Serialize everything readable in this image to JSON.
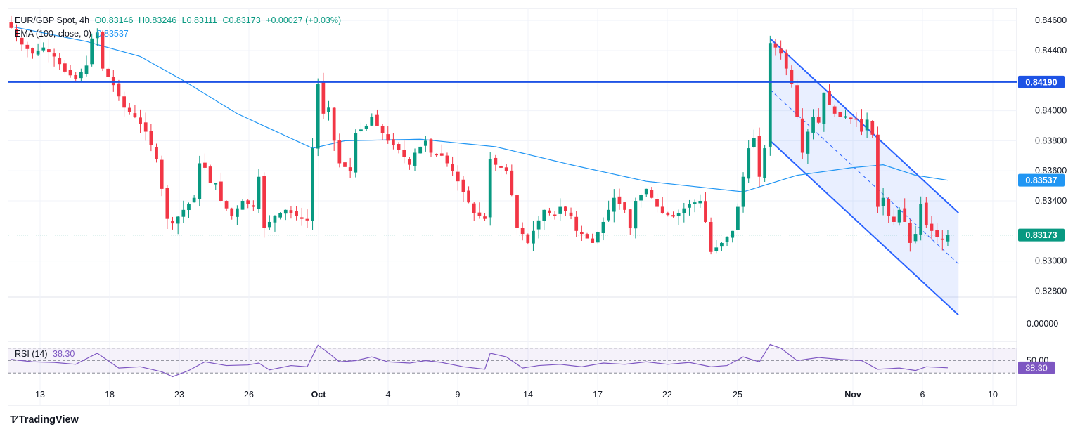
{
  "header": {
    "symbol": "EUR/GBP Spot, 4h",
    "open": "O0.83146",
    "high": "H0.83246",
    "low": "L0.83111",
    "close": "C0.83173",
    "change": "+0.00027 (+0.03%)",
    "ema_label": "EMA (100, close, 0)",
    "ema_value": "0.83537",
    "rsi_label": "RSI (14)",
    "rsi_value": "38.30"
  },
  "footer": {
    "brand": "TradingView"
  },
  "colors": {
    "up": "#089981",
    "down": "#f23645",
    "ema": "#2196f3",
    "level": "#1e53e5",
    "channel": "#2962ff",
    "rsi": "#7e57c2"
  },
  "chart_data": {
    "type": "candlestick",
    "interval": "4h",
    "y_axis_ticks": [
      "0.84600",
      "0.84400",
      "0.84000",
      "0.83800",
      "0.83600",
      "0.83400",
      "0.83000",
      "0.82800"
    ],
    "ylim": [
      0.8276,
      0.8468
    ],
    "x_tick_labels": [
      "13",
      "18",
      "23",
      "26",
      "Oct",
      "4",
      "9",
      "14",
      "17",
      "22",
      "25",
      "Nov",
      "6",
      "10"
    ],
    "horizontal_level": {
      "value": 0.8419,
      "label": "0.84190"
    },
    "last_price": {
      "value": 0.83173,
      "label": "0.83173"
    },
    "ema_last": {
      "value": 0.83537,
      "label": "0.83537"
    },
    "lower_pane_label": "0.00000",
    "close_path": [
      {
        "x": 0,
        "y": 0.8455
      },
      {
        "x": 2,
        "y": 0.8444
      },
      {
        "x": 4,
        "y": 0.8438
      },
      {
        "x": 6,
        "y": 0.8442
      },
      {
        "x": 8,
        "y": 0.8436
      },
      {
        "x": 10,
        "y": 0.8426
      },
      {
        "x": 12,
        "y": 0.8421
      },
      {
        "x": 14,
        "y": 0.843
      },
      {
        "x": 15,
        "y": 0.8448
      },
      {
        "x": 16,
        "y": 0.8452
      },
      {
        "x": 17,
        "y": 0.8428
      },
      {
        "x": 19,
        "y": 0.8417
      },
      {
        "x": 21,
        "y": 0.8402
      },
      {
        "x": 23,
        "y": 0.8396
      },
      {
        "x": 25,
        "y": 0.8386
      },
      {
        "x": 27,
        "y": 0.8368
      },
      {
        "x": 28,
        "y": 0.8348
      },
      {
        "x": 29,
        "y": 0.8328
      },
      {
        "x": 30,
        "y": 0.8325
      },
      {
        "x": 32,
        "y": 0.8334
      },
      {
        "x": 34,
        "y": 0.8342
      },
      {
        "x": 35,
        "y": 0.8365
      },
      {
        "x": 36,
        "y": 0.8362
      },
      {
        "x": 37,
        "y": 0.8352
      },
      {
        "x": 38,
        "y": 0.8352
      },
      {
        "x": 39,
        "y": 0.834
      },
      {
        "x": 41,
        "y": 0.833
      },
      {
        "x": 43,
        "y": 0.834
      },
      {
        "x": 45,
        "y": 0.8336
      },
      {
        "x": 46,
        "y": 0.8356
      },
      {
        "x": 47,
        "y": 0.8322
      },
      {
        "x": 49,
        "y": 0.833
      },
      {
        "x": 51,
        "y": 0.8334
      },
      {
        "x": 53,
        "y": 0.833
      },
      {
        "x": 54,
        "y": 0.8328
      },
      {
        "x": 55,
        "y": 0.8327
      },
      {
        "x": 56,
        "y": 0.8375
      },
      {
        "x": 57,
        "y": 0.8418
      },
      {
        "x": 58,
        "y": 0.8398
      },
      {
        "x": 59,
        "y": 0.8402
      },
      {
        "x": 60,
        "y": 0.838
      },
      {
        "x": 61,
        "y": 0.8365
      },
      {
        "x": 63,
        "y": 0.836
      },
      {
        "x": 64,
        "y": 0.8385
      },
      {
        "x": 66,
        "y": 0.839
      },
      {
        "x": 67,
        "y": 0.8396
      },
      {
        "x": 68,
        "y": 0.839
      },
      {
        "x": 70,
        "y": 0.838
      },
      {
        "x": 72,
        "y": 0.8374
      },
      {
        "x": 74,
        "y": 0.8364
      },
      {
        "x": 75,
        "y": 0.8372
      },
      {
        "x": 77,
        "y": 0.838
      },
      {
        "x": 78,
        "y": 0.8372
      },
      {
        "x": 80,
        "y": 0.837
      },
      {
        "x": 82,
        "y": 0.836
      },
      {
        "x": 84,
        "y": 0.8346
      },
      {
        "x": 86,
        "y": 0.8332
      },
      {
        "x": 88,
        "y": 0.8328
      },
      {
        "x": 89,
        "y": 0.8368
      },
      {
        "x": 90,
        "y": 0.8364
      },
      {
        "x": 92,
        "y": 0.836
      },
      {
        "x": 93,
        "y": 0.8344
      },
      {
        "x": 94,
        "y": 0.8322
      },
      {
        "x": 95,
        "y": 0.8318
      },
      {
        "x": 96,
        "y": 0.8312
      },
      {
        "x": 97,
        "y": 0.832
      },
      {
        "x": 99,
        "y": 0.8334
      },
      {
        "x": 101,
        "y": 0.833
      },
      {
        "x": 102,
        "y": 0.8336
      },
      {
        "x": 104,
        "y": 0.833
      },
      {
        "x": 105,
        "y": 0.832
      },
      {
        "x": 106,
        "y": 0.8318
      },
      {
        "x": 108,
        "y": 0.8312
      },
      {
        "x": 110,
        "y": 0.8326
      },
      {
        "x": 112,
        "y": 0.8342
      },
      {
        "x": 114,
        "y": 0.8334
      },
      {
        "x": 115,
        "y": 0.8322
      },
      {
        "x": 116,
        "y": 0.834
      },
      {
        "x": 118,
        "y": 0.8348
      },
      {
        "x": 120,
        "y": 0.8336
      },
      {
        "x": 121,
        "y": 0.8332
      },
      {
        "x": 123,
        "y": 0.833
      },
      {
        "x": 124,
        "y": 0.8332
      },
      {
        "x": 126,
        "y": 0.8338
      },
      {
        "x": 128,
        "y": 0.834
      },
      {
        "x": 129,
        "y": 0.8326
      },
      {
        "x": 130,
        "y": 0.8306
      },
      {
        "x": 132,
        "y": 0.8312
      },
      {
        "x": 133,
        "y": 0.8316
      },
      {
        "x": 134,
        "y": 0.832
      },
      {
        "x": 135,
        "y": 0.8336
      },
      {
        "x": 136,
        "y": 0.8356
      },
      {
        "x": 137,
        "y": 0.8375
      },
      {
        "x": 138,
        "y": 0.8382
      },
      {
        "x": 139,
        "y": 0.8356
      },
      {
        "x": 140,
        "y": 0.8375
      },
      {
        "x": 141,
        "y": 0.8445
      },
      {
        "x": 142,
        "y": 0.8442
      },
      {
        "x": 143,
        "y": 0.8438
      },
      {
        "x": 144,
        "y": 0.8428
      },
      {
        "x": 145,
        "y": 0.8418
      },
      {
        "x": 146,
        "y": 0.8396
      },
      {
        "x": 147,
        "y": 0.8372
      },
      {
        "x": 148,
        "y": 0.8386
      },
      {
        "x": 149,
        "y": 0.8396
      },
      {
        "x": 150,
        "y": 0.8392
      },
      {
        "x": 151,
        "y": 0.8412
      },
      {
        "x": 152,
        "y": 0.8404
      },
      {
        "x": 153,
        "y": 0.8398
      },
      {
        "x": 154,
        "y": 0.8396
      },
      {
        "x": 156,
        "y": 0.8396
      },
      {
        "x": 157,
        "y": 0.8394
      },
      {
        "x": 158,
        "y": 0.8386
      },
      {
        "x": 159,
        "y": 0.8394
      },
      {
        "x": 160,
        "y": 0.8384
      },
      {
        "x": 161,
        "y": 0.8336
      },
      {
        "x": 162,
        "y": 0.8342
      },
      {
        "x": 163,
        "y": 0.833
      },
      {
        "x": 164,
        "y": 0.8326
      },
      {
        "x": 165,
        "y": 0.8334
      },
      {
        "x": 166,
        "y": 0.8326
      },
      {
        "x": 167,
        "y": 0.8312
      },
      {
        "x": 168,
        "y": 0.8318
      },
      {
        "x": 169,
        "y": 0.8338
      },
      {
        "x": 170,
        "y": 0.8324
      },
      {
        "x": 171,
        "y": 0.832
      },
      {
        "x": 172,
        "y": 0.8316
      },
      {
        "x": 173,
        "y": 0.8314
      },
      {
        "x": 174,
        "y": 0.83173
      }
    ],
    "ema_path": [
      {
        "x": 0,
        "y": 0.8456
      },
      {
        "x": 14,
        "y": 0.8446
      },
      {
        "x": 24,
        "y": 0.8436
      },
      {
        "x": 32,
        "y": 0.842
      },
      {
        "x": 42,
        "y": 0.8398
      },
      {
        "x": 56,
        "y": 0.8375
      },
      {
        "x": 62,
        "y": 0.838
      },
      {
        "x": 76,
        "y": 0.8381
      },
      {
        "x": 90,
        "y": 0.8376
      },
      {
        "x": 104,
        "y": 0.8364
      },
      {
        "x": 118,
        "y": 0.8353
      },
      {
        "x": 136,
        "y": 0.8346
      },
      {
        "x": 146,
        "y": 0.8357
      },
      {
        "x": 156,
        "y": 0.8362
      },
      {
        "x": 162,
        "y": 0.8364
      },
      {
        "x": 168,
        "y": 0.8357
      },
      {
        "x": 174,
        "y": 0.83537
      }
    ],
    "channel": {
      "upper": [
        {
          "x": 141,
          "y": 0.8448
        },
        {
          "x": 176,
          "y": 0.8332
        }
      ],
      "middle": [
        {
          "x": 141,
          "y": 0.8414
        },
        {
          "x": 176,
          "y": 0.8298
        }
      ],
      "lower": [
        {
          "x": 141,
          "y": 0.838
        },
        {
          "x": 176,
          "y": 0.8264
        }
      ]
    },
    "rsi": {
      "ylim": [
        20,
        80
      ],
      "levels": [
        70,
        50,
        30
      ],
      "visible_level_label": "50.00",
      "last": 38.3,
      "values": [
        {
          "x": 0,
          "y": 52
        },
        {
          "x": 4,
          "y": 48
        },
        {
          "x": 8,
          "y": 47
        },
        {
          "x": 12,
          "y": 44
        },
        {
          "x": 16,
          "y": 62
        },
        {
          "x": 20,
          "y": 38
        },
        {
          "x": 24,
          "y": 40
        },
        {
          "x": 28,
          "y": 32
        },
        {
          "x": 30,
          "y": 24
        },
        {
          "x": 33,
          "y": 34
        },
        {
          "x": 36,
          "y": 48
        },
        {
          "x": 40,
          "y": 42
        },
        {
          "x": 44,
          "y": 43
        },
        {
          "x": 46,
          "y": 46
        },
        {
          "x": 48,
          "y": 35
        },
        {
          "x": 52,
          "y": 42
        },
        {
          "x": 55,
          "y": 40
        },
        {
          "x": 57,
          "y": 75
        },
        {
          "x": 59,
          "y": 62
        },
        {
          "x": 61,
          "y": 48
        },
        {
          "x": 64,
          "y": 50
        },
        {
          "x": 67,
          "y": 56
        },
        {
          "x": 70,
          "y": 48
        },
        {
          "x": 74,
          "y": 46
        },
        {
          "x": 77,
          "y": 50
        },
        {
          "x": 80,
          "y": 47
        },
        {
          "x": 84,
          "y": 40
        },
        {
          "x": 88,
          "y": 36
        },
        {
          "x": 89,
          "y": 62
        },
        {
          "x": 92,
          "y": 56
        },
        {
          "x": 95,
          "y": 38
        },
        {
          "x": 98,
          "y": 42
        },
        {
          "x": 102,
          "y": 44
        },
        {
          "x": 106,
          "y": 40
        },
        {
          "x": 110,
          "y": 46
        },
        {
          "x": 114,
          "y": 44
        },
        {
          "x": 118,
          "y": 48
        },
        {
          "x": 122,
          "y": 44
        },
        {
          "x": 126,
          "y": 47
        },
        {
          "x": 130,
          "y": 40
        },
        {
          "x": 133,
          "y": 42
        },
        {
          "x": 136,
          "y": 56
        },
        {
          "x": 139,
          "y": 48
        },
        {
          "x": 141,
          "y": 76
        },
        {
          "x": 143,
          "y": 70
        },
        {
          "x": 146,
          "y": 50
        },
        {
          "x": 150,
          "y": 55
        },
        {
          "x": 154,
          "y": 52
        },
        {
          "x": 158,
          "y": 50
        },
        {
          "x": 161,
          "y": 36
        },
        {
          "x": 165,
          "y": 38
        },
        {
          "x": 168,
          "y": 34
        },
        {
          "x": 170,
          "y": 40
        },
        {
          "x": 174,
          "y": 38.3
        }
      ]
    }
  }
}
